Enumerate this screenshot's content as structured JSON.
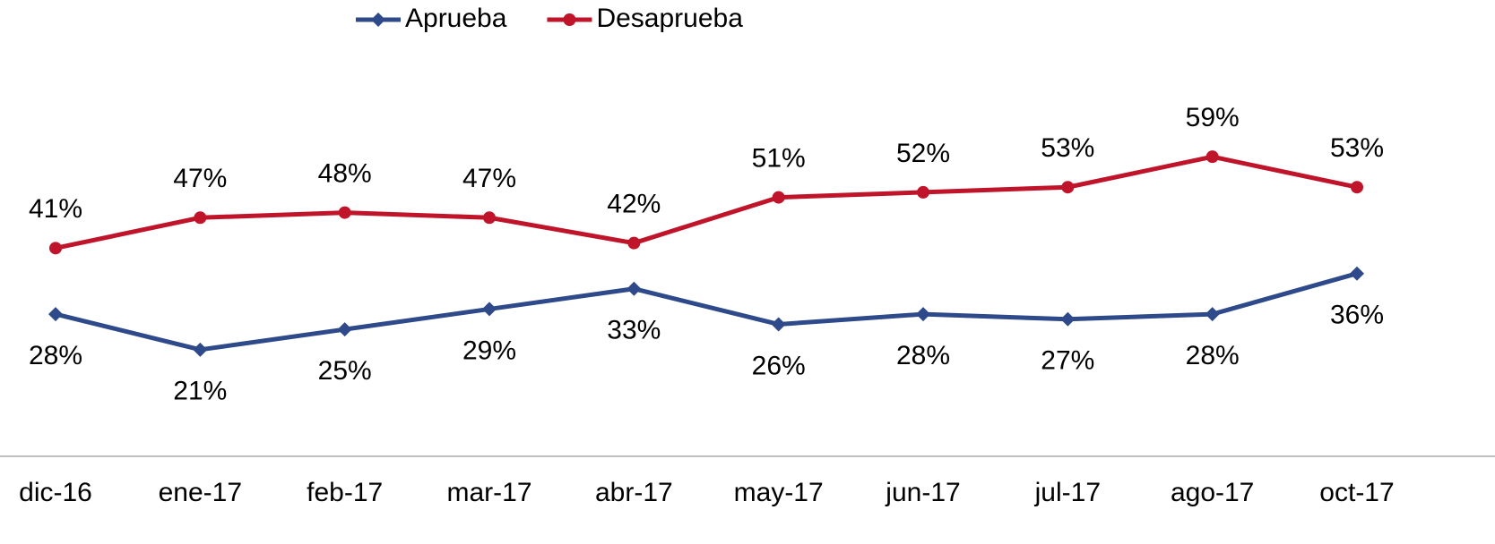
{
  "chart_data": {
    "type": "line",
    "categories": [
      "dic-16",
      "ene-17",
      "feb-17",
      "mar-17",
      "abr-17",
      "may-17",
      "jun-17",
      "jul-17",
      "ago-17",
      "oct-17"
    ],
    "series": [
      {
        "name": "Aprueba",
        "color": "#2e4a8b",
        "marker": "diamond",
        "values": [
          28,
          21,
          25,
          29,
          33,
          26,
          28,
          27,
          28,
          36
        ],
        "value_labels": [
          "28%",
          "21%",
          "25%",
          "29%",
          "33%",
          "26%",
          "28%",
          "27%",
          "28%",
          "36%"
        ]
      },
      {
        "name": "Desaprueba",
        "color": "#c0142a",
        "marker": "circle",
        "values": [
          41,
          47,
          48,
          47,
          42,
          51,
          52,
          53,
          59,
          53
        ],
        "value_labels": [
          "41%",
          "47%",
          "48%",
          "47%",
          "42%",
          "51%",
          "52%",
          "53%",
          "59%",
          "53%"
        ]
      }
    ],
    "ylim": [
      0,
      80
    ],
    "legend": "top"
  }
}
